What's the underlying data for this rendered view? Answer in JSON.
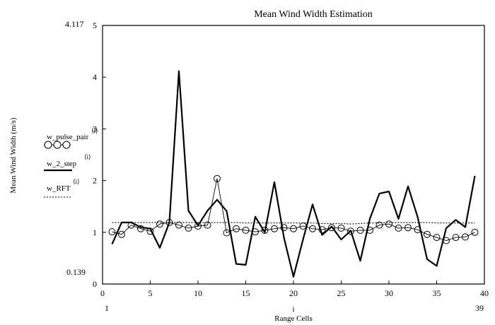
{
  "chart_data": {
    "type": "line",
    "title": "Mean Wind Width Estimation",
    "xlabel": "Range Cells",
    "xvar": "i",
    "ylabel": "Mean Wind Width (m/s)",
    "xlim": [
      0,
      40
    ],
    "ylim": [
      0,
      5
    ],
    "xticks": [
      "0",
      "5",
      "10",
      "15",
      "20",
      "25",
      "30",
      "35",
      "40"
    ],
    "yticks": [
      "0",
      "1",
      "2",
      "3",
      "4",
      "5"
    ],
    "y_bounds": {
      "max": "4.117",
      "min": "0.139"
    },
    "x_bounds": {
      "min": "1",
      "max": "39"
    },
    "grid": false,
    "legend_position": "left",
    "x": [
      1,
      2,
      3,
      4,
      5,
      6,
      7,
      8,
      9,
      10,
      11,
      12,
      13,
      14,
      15,
      16,
      17,
      18,
      19,
      20,
      21,
      22,
      23,
      24,
      25,
      26,
      27,
      28,
      29,
      30,
      31,
      32,
      33,
      34,
      35,
      36,
      37,
      38,
      39
    ],
    "series": [
      {
        "name": "w_pulse_pair",
        "superscript": "⟨i⟩",
        "style": "line-circles",
        "values": [
          1.01,
          0.96,
          1.14,
          1.07,
          1.02,
          1.16,
          1.19,
          1.14,
          1.08,
          1.12,
          1.14,
          2.04,
          0.99,
          1.07,
          1.04,
          1.01,
          1.04,
          1.07,
          1.09,
          1.07,
          1.12,
          1.07,
          1.05,
          1.09,
          1.08,
          1.02,
          1.04,
          1.04,
          1.14,
          1.16,
          1.08,
          1.09,
          1.05,
          0.96,
          0.9,
          0.84,
          0.9,
          0.91,
          1.0
        ]
      },
      {
        "name": "w_2_step",
        "superscript": "⟨i⟩",
        "style": "thick-solid",
        "values": [
          0.77,
          1.19,
          1.19,
          1.1,
          1.07,
          0.7,
          1.19,
          4.117,
          1.42,
          1.13,
          1.42,
          1.63,
          1.41,
          0.39,
          0.37,
          1.3,
          1.0,
          1.97,
          0.9,
          0.139,
          0.86,
          1.54,
          0.95,
          1.11,
          0.86,
          1.03,
          0.45,
          1.26,
          1.75,
          1.79,
          1.26,
          1.89,
          1.3,
          0.48,
          0.35,
          1.08,
          1.24,
          1.1,
          2.09
        ]
      },
      {
        "name": "w_RFT",
        "superscript": "⟨i⟩",
        "style": "dotted",
        "values": [
          1.19,
          1.19,
          1.19,
          1.19,
          1.19,
          1.19,
          1.19,
          1.19,
          1.19,
          1.19,
          1.19,
          1.19,
          1.19,
          1.19,
          1.18,
          1.18,
          1.18,
          1.18,
          1.18,
          1.18,
          1.18,
          1.18,
          1.17,
          1.17,
          1.17,
          1.16,
          1.17,
          1.18,
          1.18,
          1.19,
          1.19,
          1.19,
          1.19,
          1.19,
          1.18,
          1.18,
          1.18,
          1.18,
          1.18
        ]
      }
    ]
  }
}
